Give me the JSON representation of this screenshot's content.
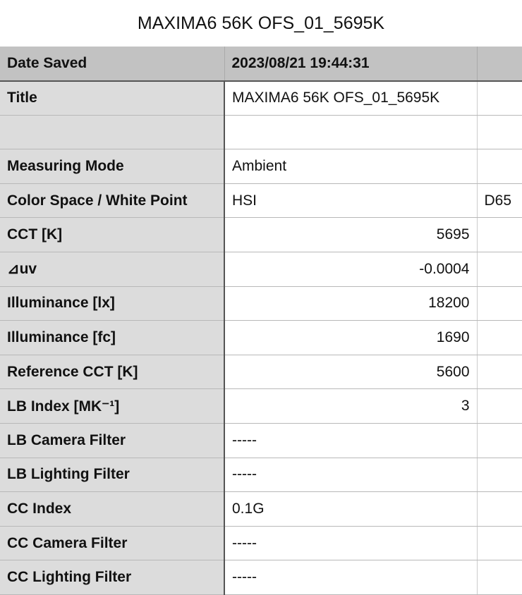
{
  "title": "MAXIMA6 56K OFS_01_5695K",
  "header": {
    "label": "Date Saved",
    "value": "2023/08/21 19:44:31",
    "extra": ""
  },
  "rows": [
    {
      "label": "Title",
      "value": "MAXIMA6 56K OFS_01_5695K",
      "extra": "",
      "align": "left"
    },
    {
      "label": "",
      "value": "",
      "extra": "",
      "align": "left"
    },
    {
      "label": "Measuring Mode",
      "value": "Ambient",
      "extra": "",
      "align": "left"
    },
    {
      "label": "Color Space / White Point",
      "value": "HSI",
      "extra": "D65",
      "align": "left"
    },
    {
      "label": "CCT [K]",
      "value": "5695",
      "extra": "",
      "align": "right"
    },
    {
      "label": "⊿uv",
      "value": "-0.0004",
      "extra": "",
      "align": "right"
    },
    {
      "label": "Illuminance [lx]",
      "value": "18200",
      "extra": "",
      "align": "right"
    },
    {
      "label": "Illuminance [fc]",
      "value": "1690",
      "extra": "",
      "align": "right"
    },
    {
      "label": "Reference CCT [K]",
      "value": "5600",
      "extra": "",
      "align": "right"
    },
    {
      "label": "LB Index [MK⁻¹]",
      "value": "3",
      "extra": "",
      "align": "right"
    },
    {
      "label": "LB Camera Filter",
      "value": "-----",
      "extra": "",
      "align": "left"
    },
    {
      "label": "LB Lighting Filter",
      "value": "-----",
      "extra": "",
      "align": "left"
    },
    {
      "label": "CC Index",
      "value": "0.1G",
      "extra": "",
      "align": "left"
    },
    {
      "label": "CC Camera Filter",
      "value": "-----",
      "extra": "",
      "align": "left"
    },
    {
      "label": "CC Lighting Filter",
      "value": "-----",
      "extra": "",
      "align": "left"
    }
  ]
}
